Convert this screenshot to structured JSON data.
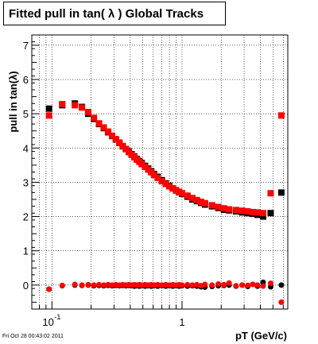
{
  "title": "Fitted pull in tan( λ )  Global Tracks",
  "footer": "Fri Oct 28 00:43:02 2011",
  "chart_data": {
    "type": "scatter",
    "title": "Fitted pull in tan( λ )  Global Tracks",
    "xlabel": "pT (GeV/c)",
    "ylabel": "pull in tan(λ)",
    "xscale": "log",
    "xlim": [
      0.07,
      6.5
    ],
    "ylim": [
      -0.7,
      7.3
    ],
    "x_ticklabels": [
      {
        "x": 0.1,
        "base": "10",
        "exp": "-1"
      },
      {
        "x": 1,
        "label": "1"
      }
    ],
    "y_ticklabels": [
      "0",
      "1",
      "2",
      "3",
      "4",
      "5",
      "6",
      "7"
    ],
    "grid": true,
    "series": [
      {
        "color": "#000000",
        "marker": "square",
        "values": [
          [
            0.095,
            5.15
          ],
          [
            0.12,
            5.25
          ],
          [
            0.15,
            5.3
          ],
          [
            0.17,
            5.2
          ],
          [
            0.19,
            5.0
          ],
          [
            0.21,
            4.85
          ],
          [
            0.23,
            4.7
          ],
          [
            0.25,
            4.58
          ],
          [
            0.27,
            4.46
          ],
          [
            0.29,
            4.35
          ],
          [
            0.31,
            4.25
          ],
          [
            0.33,
            4.15
          ],
          [
            0.35,
            4.05
          ],
          [
            0.37,
            3.97
          ],
          [
            0.39,
            3.9
          ],
          [
            0.41,
            3.82
          ],
          [
            0.43,
            3.75
          ],
          [
            0.45,
            3.68
          ],
          [
            0.47,
            3.62
          ],
          [
            0.49,
            3.56
          ],
          [
            0.52,
            3.48
          ],
          [
            0.55,
            3.4
          ],
          [
            0.58,
            3.32
          ],
          [
            0.61,
            3.24
          ],
          [
            0.65,
            3.16
          ],
          [
            0.7,
            3.06
          ],
          [
            0.75,
            2.97
          ],
          [
            0.8,
            2.9
          ],
          [
            0.85,
            2.82
          ],
          [
            0.9,
            2.76
          ],
          [
            0.95,
            2.71
          ],
          [
            1.0,
            2.66
          ],
          [
            1.1,
            2.58
          ],
          [
            1.2,
            2.5
          ],
          [
            1.3,
            2.45
          ],
          [
            1.4,
            2.4
          ],
          [
            1.5,
            2.35
          ],
          [
            1.7,
            2.3
          ],
          [
            1.9,
            2.25
          ],
          [
            2.1,
            2.2
          ],
          [
            2.3,
            2.18
          ],
          [
            2.6,
            2.15
          ],
          [
            2.9,
            2.12
          ],
          [
            3.2,
            2.1
          ],
          [
            3.5,
            2.08
          ],
          [
            3.8,
            2.05
          ],
          [
            4.2,
            2.0
          ],
          [
            4.8,
            2.1
          ],
          [
            5.8,
            2.7
          ]
        ]
      },
      {
        "color": "#ff0000",
        "marker": "square",
        "values": [
          [
            0.095,
            4.95
          ],
          [
            0.12,
            5.28
          ],
          [
            0.15,
            5.25
          ],
          [
            0.17,
            5.18
          ],
          [
            0.19,
            5.05
          ],
          [
            0.21,
            4.88
          ],
          [
            0.23,
            4.72
          ],
          [
            0.25,
            4.6
          ],
          [
            0.27,
            4.48
          ],
          [
            0.29,
            4.36
          ],
          [
            0.31,
            4.26
          ],
          [
            0.33,
            4.16
          ],
          [
            0.35,
            4.06
          ],
          [
            0.37,
            3.97
          ],
          [
            0.39,
            3.88
          ],
          [
            0.41,
            3.8
          ],
          [
            0.43,
            3.73
          ],
          [
            0.45,
            3.66
          ],
          [
            0.47,
            3.6
          ],
          [
            0.49,
            3.53
          ],
          [
            0.52,
            3.45
          ],
          [
            0.55,
            3.37
          ],
          [
            0.58,
            3.29
          ],
          [
            0.61,
            3.21
          ],
          [
            0.65,
            3.13
          ],
          [
            0.7,
            3.03
          ],
          [
            0.75,
            2.95
          ],
          [
            0.8,
            2.88
          ],
          [
            0.85,
            2.82
          ],
          [
            0.9,
            2.77
          ],
          [
            0.95,
            2.72
          ],
          [
            1.0,
            2.68
          ],
          [
            1.1,
            2.61
          ],
          [
            1.2,
            2.54
          ],
          [
            1.3,
            2.48
          ],
          [
            1.4,
            2.43
          ],
          [
            1.5,
            2.39
          ],
          [
            1.7,
            2.33
          ],
          [
            1.9,
            2.28
          ],
          [
            2.1,
            2.24
          ],
          [
            2.3,
            2.21
          ],
          [
            2.6,
            2.19
          ],
          [
            2.9,
            2.17
          ],
          [
            3.2,
            2.15
          ],
          [
            3.5,
            2.13
          ],
          [
            3.8,
            2.12
          ],
          [
            4.2,
            2.1
          ],
          [
            4.8,
            2.68
          ],
          [
            5.8,
            4.95
          ]
        ]
      },
      {
        "color": "#000000",
        "marker": "circle",
        "values": [
          [
            0.095,
            -0.12
          ],
          [
            0.12,
            -0.02
          ],
          [
            0.15,
            0.0
          ],
          [
            0.17,
            -0.01
          ],
          [
            0.19,
            0.0
          ],
          [
            0.21,
            -0.02
          ],
          [
            0.23,
            -0.01
          ],
          [
            0.25,
            -0.02
          ],
          [
            0.27,
            -0.01
          ],
          [
            0.29,
            -0.02
          ],
          [
            0.31,
            -0.01
          ],
          [
            0.33,
            -0.02
          ],
          [
            0.35,
            -0.01
          ],
          [
            0.37,
            -0.02
          ],
          [
            0.39,
            -0.01
          ],
          [
            0.41,
            -0.02
          ],
          [
            0.43,
            -0.03
          ],
          [
            0.45,
            -0.02
          ],
          [
            0.47,
            -0.03
          ],
          [
            0.49,
            -0.02
          ],
          [
            0.52,
            -0.03
          ],
          [
            0.55,
            -0.02
          ],
          [
            0.58,
            -0.03
          ],
          [
            0.61,
            -0.02
          ],
          [
            0.65,
            -0.03
          ],
          [
            0.7,
            -0.02
          ],
          [
            0.75,
            -0.03
          ],
          [
            0.8,
            -0.02
          ],
          [
            0.85,
            -0.03
          ],
          [
            0.9,
            -0.02
          ],
          [
            0.95,
            -0.03
          ],
          [
            1.0,
            -0.02
          ],
          [
            1.1,
            -0.03
          ],
          [
            1.2,
            -0.02
          ],
          [
            1.3,
            -0.03
          ],
          [
            1.4,
            -0.05
          ],
          [
            1.5,
            -0.06
          ],
          [
            1.7,
            -0.04
          ],
          [
            1.9,
            -0.02
          ],
          [
            2.1,
            -0.01
          ],
          [
            2.3,
            0.0
          ],
          [
            2.6,
            -0.03
          ],
          [
            2.9,
            0.0
          ],
          [
            3.2,
            -0.04
          ],
          [
            3.5,
            0.02
          ],
          [
            3.8,
            -0.03
          ],
          [
            4.2,
            0.08
          ],
          [
            4.8,
            -0.05
          ],
          [
            5.8,
            0.0
          ]
        ]
      },
      {
        "color": "#ff0000",
        "marker": "circle",
        "values": [
          [
            0.095,
            -0.12
          ],
          [
            0.12,
            -0.01
          ],
          [
            0.15,
            0.02
          ],
          [
            0.17,
            0.0
          ],
          [
            0.19,
            0.01
          ],
          [
            0.21,
            0.0
          ],
          [
            0.23,
            0.01
          ],
          [
            0.25,
            0.0
          ],
          [
            0.27,
            0.01
          ],
          [
            0.29,
            0.0
          ],
          [
            0.31,
            0.01
          ],
          [
            0.33,
            0.0
          ],
          [
            0.35,
            0.01
          ],
          [
            0.37,
            0.0
          ],
          [
            0.39,
            0.01
          ],
          [
            0.41,
            0.0
          ],
          [
            0.43,
            0.01
          ],
          [
            0.45,
            0.0
          ],
          [
            0.47,
            0.01
          ],
          [
            0.49,
            0.0
          ],
          [
            0.52,
            0.01
          ],
          [
            0.55,
            0.0
          ],
          [
            0.58,
            0.01
          ],
          [
            0.61,
            0.0
          ],
          [
            0.65,
            0.01
          ],
          [
            0.7,
            0.0
          ],
          [
            0.75,
            0.01
          ],
          [
            0.8,
            0.0
          ],
          [
            0.85,
            0.01
          ],
          [
            0.9,
            0.0
          ],
          [
            0.95,
            0.01
          ],
          [
            1.0,
            0.0
          ],
          [
            1.1,
            0.01
          ],
          [
            1.2,
            0.0
          ],
          [
            1.3,
            0.01
          ],
          [
            1.4,
            -0.02
          ],
          [
            1.5,
            0.02
          ],
          [
            1.7,
            0.0
          ],
          [
            1.9,
            0.03
          ],
          [
            2.1,
            0.01
          ],
          [
            2.3,
            0.06
          ],
          [
            2.6,
            -0.02
          ],
          [
            2.9,
            0.0
          ],
          [
            3.2,
            -0.01
          ],
          [
            3.5,
            0.02
          ],
          [
            3.8,
            0.0
          ],
          [
            4.2,
            -0.03
          ],
          [
            4.8,
            0.05
          ],
          [
            5.8,
            -0.5
          ]
        ]
      }
    ]
  }
}
